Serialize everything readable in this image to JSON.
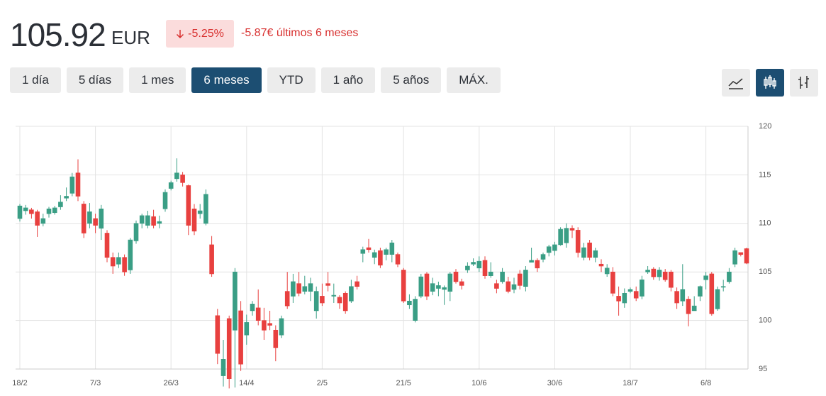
{
  "header": {
    "price": "105.92",
    "currency": "EUR",
    "change_pct": "-5.25%",
    "change_text": "-5.87€ últimos 6 meses"
  },
  "ranges": [
    {
      "label": "1 día",
      "active": false
    },
    {
      "label": "5 días",
      "active": false
    },
    {
      "label": "1 mes",
      "active": false
    },
    {
      "label": "6 meses",
      "active": true
    },
    {
      "label": "YTD",
      "active": false
    },
    {
      "label": "1 año",
      "active": false
    },
    {
      "label": "5 años",
      "active": false
    },
    {
      "label": "MÁX.",
      "active": false
    }
  ],
  "chart_data": {
    "type": "candlestick",
    "up_color": "#3a9e85",
    "down_color": "#e8403f",
    "grid": true,
    "ylim": [
      95,
      120
    ],
    "yticks": [
      95,
      100,
      105,
      110,
      115,
      120
    ],
    "categories": [
      "18/2",
      null,
      null,
      null,
      null,
      null,
      null,
      null,
      null,
      null,
      null,
      null,
      null,
      "7/3",
      null,
      null,
      null,
      null,
      null,
      null,
      null,
      null,
      null,
      null,
      null,
      null,
      "26/3",
      null,
      null,
      null,
      null,
      null,
      null,
      null,
      null,
      null,
      null,
      null,
      null,
      "14/4",
      null,
      null,
      null,
      null,
      null,
      null,
      null,
      null,
      null,
      null,
      null,
      null,
      "2/5",
      null,
      null,
      null,
      null,
      null,
      null,
      null,
      null,
      null,
      null,
      null,
      null,
      null,
      "21/5",
      null,
      null,
      null,
      null,
      null,
      null,
      null,
      null,
      null,
      null,
      null,
      null,
      "10/6",
      null,
      null,
      null,
      null,
      null,
      null,
      null,
      null,
      null,
      null,
      null,
      null,
      "30/6",
      null,
      null,
      null,
      null,
      null,
      null,
      null,
      null,
      null,
      null,
      null,
      null,
      "18/7",
      null,
      null,
      null,
      null,
      null,
      null,
      null,
      null,
      null,
      null,
      null,
      null,
      "6/8",
      null,
      null,
      null,
      null,
      null,
      null,
      null
    ],
    "open": [
      110.5,
      111.3,
      111.4,
      111.2,
      110.0,
      111.0,
      111.1,
      111.7,
      112.6,
      113.1,
      115.2,
      112.0,
      110.0,
      110.5,
      109.5,
      109.0,
      106.5,
      105.8,
      106.5,
      105.2,
      108.2,
      110.0,
      109.8,
      110.7,
      110.0,
      111.5,
      113.6,
      114.6,
      115.0,
      113.9,
      111.5,
      111.0,
      110.0,
      107.8,
      100.5,
      94.3,
      100.2,
      99.0,
      101.0,
      98.5,
      101.0,
      101.3,
      100.0,
      99.7,
      99.0,
      98.5,
      103.0,
      102.5,
      103.8,
      103.0,
      103.0,
      101.0,
      102.5,
      103.8,
      102.5,
      102.4,
      102.8,
      102.0,
      104.0,
      106.9,
      107.5,
      106.5,
      107.2,
      106.8,
      106.8,
      106.8,
      105.2,
      101.6,
      100.0,
      102.5,
      104.8,
      103.0,
      103.3,
      103.2,
      103.0,
      105.0,
      104.0,
      105.2,
      105.8,
      105.4,
      106.2,
      104.6,
      103.8,
      104.0,
      104.0,
      103.2,
      104.8,
      103.5,
      106.0,
      106.2,
      106.3,
      107.0,
      107.2,
      107.8,
      108.0,
      109.5,
      109.3,
      106.5,
      108.0,
      106.5,
      105.8,
      104.8,
      105.0,
      102.5,
      101.8,
      103.0,
      103.0,
      102.5,
      105.0,
      105.3,
      104.5,
      105.0,
      105.0,
      103.0,
      102.0,
      102.2,
      101.0,
      102.5,
      104.2,
      104.8,
      101.2,
      103.5,
      104.0,
      105.8,
      107.0,
      107.4
    ],
    "high": [
      112.0,
      111.9,
      111.6,
      111.4,
      111.0,
      111.7,
      111.8,
      112.9,
      113.7,
      115.2,
      116.6,
      112.3,
      112.1,
      111.0,
      111.9,
      109.3,
      107.0,
      107.0,
      106.8,
      108.5,
      110.3,
      111.0,
      111.3,
      111.4,
      110.8,
      113.5,
      114.4,
      116.7,
      115.3,
      114.0,
      112.0,
      112.0,
      113.5,
      108.7,
      101.2,
      98.0,
      100.5,
      105.4,
      102.0,
      100.6,
      102.0,
      103.2,
      101.3,
      101.0,
      99.5,
      100.5,
      105.0,
      104.8,
      105.0,
      104.6,
      104.4,
      103.5,
      103.8,
      105.0,
      103.8,
      102.6,
      103.0,
      104.2,
      104.6,
      107.6,
      108.4,
      107.3,
      107.5,
      107.5,
      108.3,
      107.0,
      105.4,
      102.7,
      102.5,
      104.8,
      105.0,
      104.4,
      104.0,
      103.6,
      105.0,
      105.3,
      104.3,
      106.0,
      106.4,
      106.6,
      106.6,
      106.0,
      104.2,
      105.4,
      104.5,
      104.4,
      105.2,
      105.6,
      107.5,
      106.4,
      107.0,
      107.8,
      108.1,
      109.6,
      110.0,
      109.8,
      109.6,
      108.0,
      108.3,
      107.5,
      106.3,
      105.8,
      105.5,
      103.5,
      103.3,
      103.4,
      103.5,
      104.6,
      105.6,
      105.5,
      105.5,
      105.3,
      105.2,
      103.4,
      105.8,
      102.5,
      102.5,
      103.6,
      105.0,
      105.0,
      103.5,
      104.2,
      105.4,
      107.5,
      107.0,
      107.5
    ],
    "low": [
      110.2,
      110.9,
      110.5,
      108.6,
      109.7,
      110.6,
      110.9,
      111.4,
      112.3,
      112.8,
      112.3,
      108.5,
      109.5,
      109.0,
      108.3,
      106.0,
      104.8,
      105.4,
      104.6,
      104.8,
      107.9,
      109.5,
      109.5,
      109.5,
      109.5,
      111.2,
      113.4,
      114.3,
      113.8,
      108.8,
      108.8,
      110.5,
      109.8,
      104.5,
      95.5,
      93.2,
      93.0,
      93.1,
      94.8,
      97.5,
      100.5,
      99.5,
      98.0,
      99.0,
      95.8,
      98.2,
      101.2,
      101.8,
      102.5,
      102.7,
      102.0,
      100.2,
      101.5,
      103.0,
      101.8,
      101.2,
      100.7,
      101.8,
      103.2,
      106.0,
      107.0,
      105.8,
      105.4,
      106.2,
      106.0,
      105.5,
      101.8,
      101.2,
      99.8,
      102.3,
      102.1,
      102.6,
      102.5,
      101.6,
      102.0,
      103.8,
      103.2,
      104.9,
      105.6,
      105.0,
      104.3,
      104.4,
      102.8,
      103.8,
      102.8,
      102.8,
      103.2,
      103.0,
      106.0,
      105.0,
      106.0,
      106.6,
      106.7,
      107.7,
      107.5,
      108.5,
      106.5,
      106.2,
      106.2,
      106.0,
      105.0,
      104.5,
      102.5,
      100.5,
      101.3,
      102.8,
      102.0,
      102.2,
      104.8,
      104.2,
      104.1,
      104.0,
      103.0,
      101.2,
      101.5,
      99.4,
      101.0,
      102.0,
      103.2,
      100.5,
      101.0,
      103.0,
      103.8,
      105.5,
      106.6,
      105.8
    ],
    "close": [
      111.8,
      111.6,
      111.0,
      109.8,
      110.5,
      111.5,
      111.6,
      112.2,
      112.8,
      114.8,
      112.8,
      109.0,
      111.2,
      109.8,
      111.5,
      106.5,
      105.6,
      106.5,
      105.0,
      108.3,
      110.0,
      110.8,
      110.8,
      109.8,
      110.2,
      113.2,
      114.2,
      115.2,
      114.2,
      109.8,
      109.2,
      111.3,
      113.0,
      104.8,
      96.6,
      96.0,
      94.0,
      105.0,
      95.5,
      99.8,
      101.7,
      100.0,
      99.0,
      99.5,
      97.2,
      100.2,
      101.5,
      104.0,
      102.8,
      103.5,
      103.8,
      103.0,
      101.8,
      103.6,
      102.6,
      101.8,
      101.0,
      103.5,
      103.5,
      107.3,
      107.3,
      107.0,
      105.7,
      107.3,
      108.0,
      105.8,
      102.0,
      102.0,
      102.2,
      104.5,
      102.5,
      103.8,
      103.6,
      103.4,
      104.8,
      104.0,
      103.6,
      105.6,
      106.0,
      106.1,
      104.6,
      105.0,
      103.3,
      105.0,
      103.0,
      103.7,
      103.6,
      105.2,
      106.2,
      105.4,
      106.8,
      107.6,
      107.8,
      109.4,
      109.5,
      109.3,
      107.0,
      107.5,
      106.5,
      107.2,
      105.6,
      105.4,
      102.8,
      102.0,
      102.8,
      103.2,
      102.3,
      104.2,
      105.2,
      104.5,
      105.2,
      104.2,
      103.4,
      101.8,
      103.2,
      100.7,
      101.5,
      103.5,
      104.6,
      100.7,
      103.2,
      103.5,
      105.0,
      107.2,
      106.8,
      105.9
    ]
  }
}
